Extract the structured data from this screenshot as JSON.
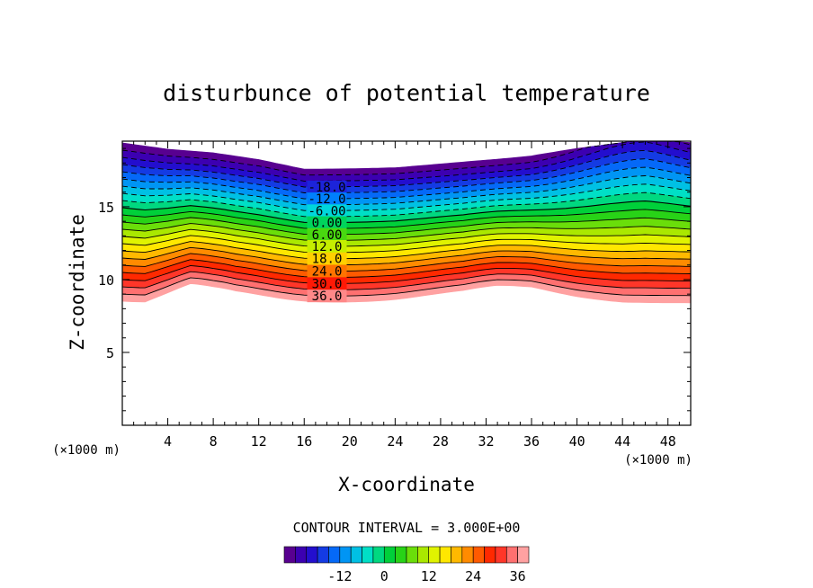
{
  "chart_data": {
    "type": "heatmap",
    "title": "disturbunce of potential temperature",
    "xlabel": "X-coordinate",
    "ylabel": "Z-coordinate",
    "x_unit": "(×1000 m)",
    "y_unit": "(×1000 m)",
    "xlim": [
      0,
      50
    ],
    "ylim": [
      0,
      19.5
    ],
    "x_ticks": [
      4,
      8,
      12,
      16,
      20,
      24,
      28,
      32,
      36,
      40,
      44,
      48
    ],
    "y_ticks": [
      5,
      10,
      15
    ],
    "contour_interval_text": "CONTOUR INTERVAL = 3.000E+00",
    "contour_interval": 3.0,
    "value_range": [
      -27,
      39
    ],
    "contour_labels": [
      {
        "text": "-18.0",
        "level": -18
      },
      {
        "text": "-12.0",
        "level": -12
      },
      {
        "text": "-6.00",
        "level": -6
      },
      {
        "text": "0.00",
        "level": 0
      },
      {
        "text": "6.00",
        "level": 6
      },
      {
        "text": "12.0",
        "level": 12
      },
      {
        "text": "18.0",
        "level": 18
      },
      {
        "text": "24.0",
        "level": 24
      },
      {
        "text": "30.0",
        "level": 30
      },
      {
        "text": "36.0",
        "level": 36
      }
    ],
    "colorbar": {
      "ticks": [
        "-12",
        "0",
        "12",
        "24",
        "36"
      ],
      "tick_values": [
        -12,
        0,
        12,
        24,
        36
      ],
      "range": [
        -27,
        39
      ]
    },
    "bottom_boundary": [
      [
        0,
        8.4
      ],
      [
        2,
        8.2
      ],
      [
        4,
        8.6
      ],
      [
        6,
        9.0
      ],
      [
        8,
        8.7
      ],
      [
        10,
        8.5
      ],
      [
        16,
        8.4
      ],
      [
        24,
        8.4
      ],
      [
        30,
        8.5
      ],
      [
        33,
        8.8
      ],
      [
        36,
        8.9
      ],
      [
        40,
        8.6
      ],
      [
        44,
        8.4
      ],
      [
        50,
        8.4
      ]
    ],
    "top_boundary": [
      [
        0,
        19.4
      ],
      [
        4,
        19.0
      ],
      [
        8,
        18.8
      ],
      [
        12,
        18.4
      ],
      [
        16,
        17.8
      ],
      [
        24,
        17.9
      ],
      [
        28,
        18.1
      ],
      [
        32,
        18.3
      ],
      [
        36,
        18.5
      ],
      [
        40,
        19.0
      ],
      [
        44,
        19.4
      ],
      [
        46,
        19.6
      ],
      [
        50,
        19.4
      ]
    ]
  }
}
